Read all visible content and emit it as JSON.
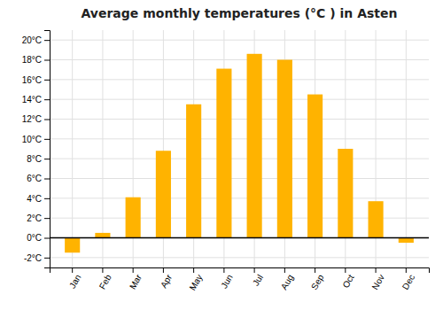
{
  "chart_data": {
    "type": "bar",
    "title": "Average monthly temperatures (°C ) in Asten",
    "categories": [
      "Jan",
      "Feb",
      "Mar",
      "Apr",
      "May",
      "Jun",
      "Jul",
      "Aug",
      "Sep",
      "Oct",
      "Nov",
      "Dec"
    ],
    "values": [
      -1.5,
      0.5,
      4.1,
      8.8,
      13.5,
      17.1,
      18.6,
      18.0,
      14.5,
      9.0,
      3.7,
      -0.5
    ],
    "color": "#FFB300",
    "ylim": [
      -3,
      21
    ],
    "yticks": [
      {
        "value": -2,
        "label": "-2°C"
      },
      {
        "value": 0,
        "label": "0°C"
      },
      {
        "value": 2,
        "label": "2°C"
      },
      {
        "value": 4,
        "label": "4°C"
      },
      {
        "value": 6,
        "label": "6°C"
      },
      {
        "value": 8,
        "label": "8°C"
      },
      {
        "value": 10,
        "label": "10°C"
      },
      {
        "value": 12,
        "label": "12°C"
      },
      {
        "value": 14,
        "label": "14°C"
      },
      {
        "value": 16,
        "label": "16°C"
      },
      {
        "value": 18,
        "label": "18°C"
      },
      {
        "value": 20,
        "label": "20°C"
      }
    ],
    "grid": true
  }
}
